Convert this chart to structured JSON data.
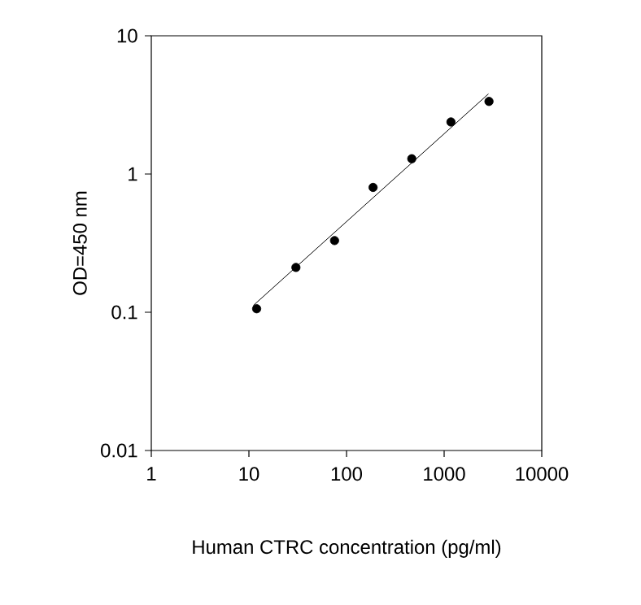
{
  "chart_data": {
    "type": "scatter",
    "xlabel": "Human CTRC concentration (pg/ml)",
    "ylabel": "OD=450 nm",
    "log": "xy",
    "xlim": [
      1,
      10000
    ],
    "ylim": [
      0.01,
      10
    ],
    "xticks": [
      1,
      10,
      100,
      1000,
      10000
    ],
    "yticks": [
      0.01,
      0.1,
      1,
      10
    ],
    "grid": false,
    "series": [
      {
        "color": "#000000",
        "marker": "circle",
        "x": [
          12.0,
          30.3,
          75.4,
          187,
          466,
          1174,
          2880
        ],
        "values": [
          0.106,
          0.211,
          0.33,
          0.8,
          1.29,
          2.38,
          3.35
        ]
      },
      {
        "type": "line",
        "color": "#000000",
        "x": [
          11.1,
          2845
        ],
        "values": [
          0.112,
          3.8
        ]
      }
    ]
  }
}
